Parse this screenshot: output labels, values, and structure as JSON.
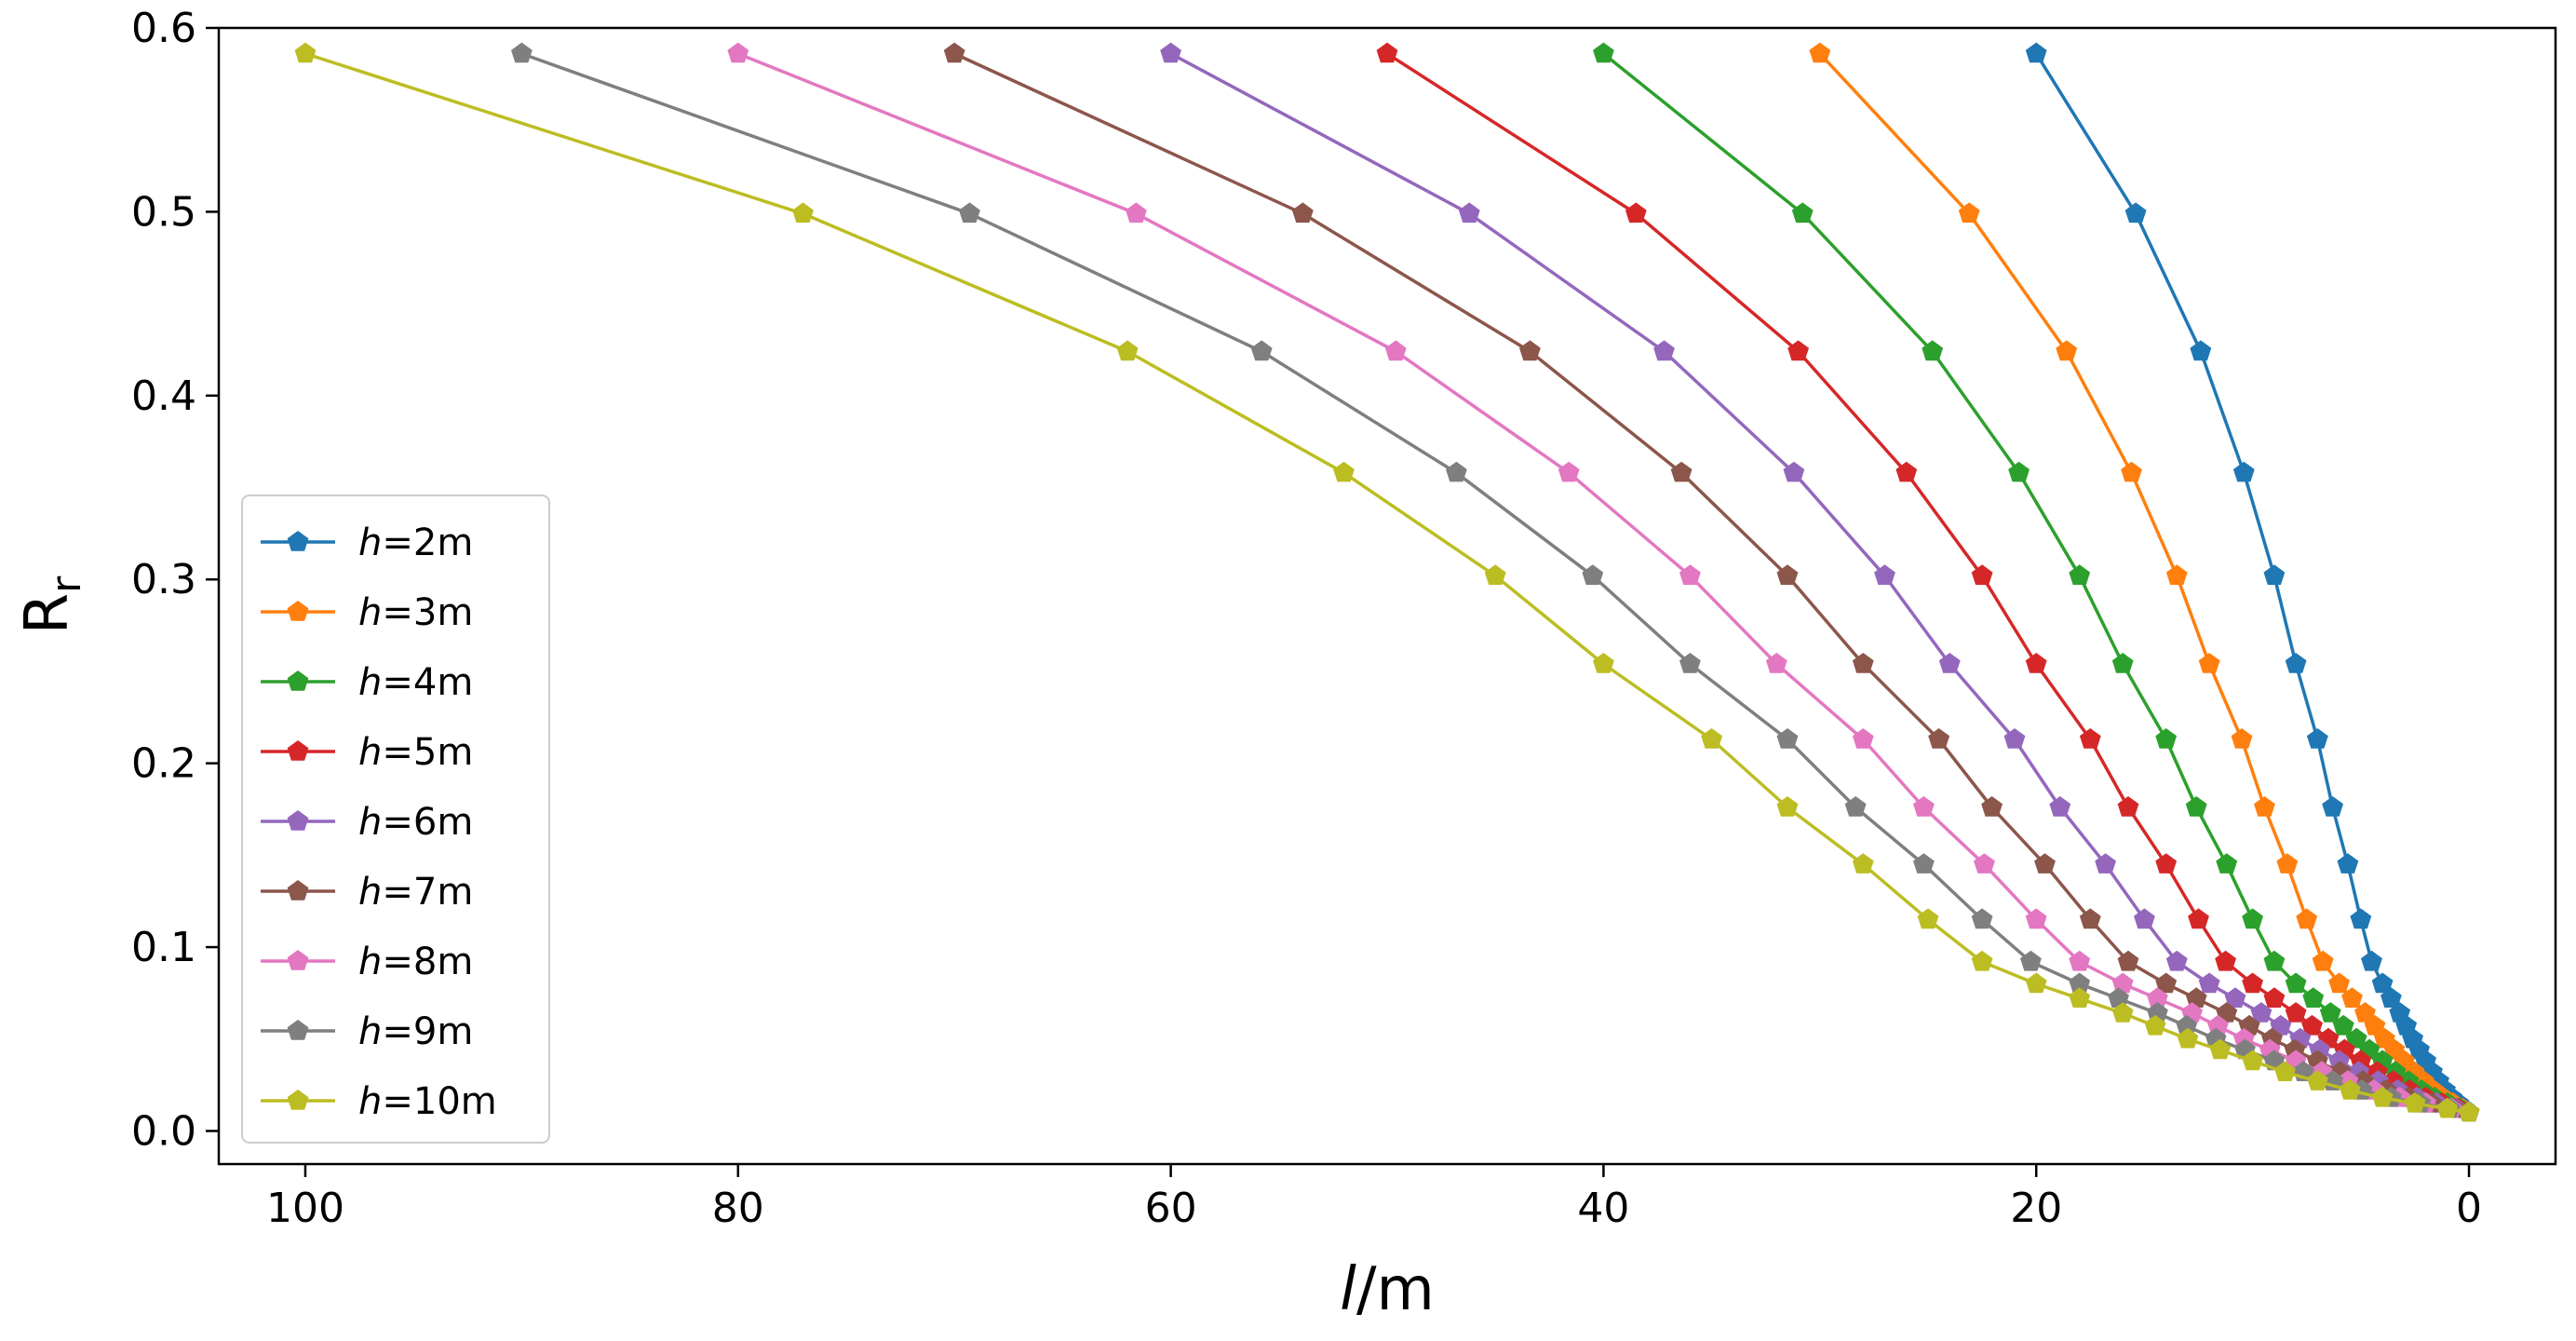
{
  "chart_data": {
    "type": "line",
    "title": "",
    "xlabel": "l/m",
    "xlabel_italic_part": "l",
    "xlabel_unit": "/m",
    "ylabel": "Rr",
    "ylabel_main": "R",
    "ylabel_sub": "r",
    "xlim": [
      104.0,
      -4.0
    ],
    "ylim": [
      -0.018,
      0.6
    ],
    "xticks": [
      100,
      80,
      60,
      40,
      20,
      0
    ],
    "yticks": [
      0.0,
      0.1,
      0.2,
      0.3,
      0.4,
      0.5,
      0.6
    ],
    "xtick_labels": [
      "100",
      "80",
      "60",
      "40",
      "20",
      "0"
    ],
    "ytick_labels": [
      "0.0",
      "0.1",
      "0.2",
      "0.3",
      "0.4",
      "0.5",
      "0.6"
    ],
    "grid": false,
    "legend_position": "lower-left",
    "marker": "pentagon",
    "normalized_curve": {
      "l_over_h": [
        10.0,
        7.7,
        6.2,
        5.2,
        4.5,
        4.0,
        3.5,
        3.15,
        2.8,
        2.5,
        2.25,
        2.0,
        1.8,
        1.6,
        1.45,
        1.3,
        1.15,
        1.0,
        0.85,
        0.7,
        0.55,
        0.4,
        0.25,
        0.1,
        0.0
      ],
      "Rr": [
        0.586,
        0.499,
        0.424,
        0.358,
        0.302,
        0.254,
        0.213,
        0.176,
        0.145,
        0.115,
        0.092,
        0.08,
        0.072,
        0.064,
        0.057,
        0.05,
        0.044,
        0.038,
        0.032,
        0.027,
        0.022,
        0.018,
        0.015,
        0.012,
        0.01
      ],
      "description": "All series share this profile with l = h * l_over_h"
    },
    "series": [
      {
        "name": "h=2m",
        "h": 2,
        "color": "#1f77b4"
      },
      {
        "name": "h=3m",
        "h": 3,
        "color": "#ff7f0e"
      },
      {
        "name": "h=4m",
        "h": 4,
        "color": "#2ca02c"
      },
      {
        "name": "h=5m",
        "h": 5,
        "color": "#d62728"
      },
      {
        "name": "h=6m",
        "h": 6,
        "color": "#9467bd"
      },
      {
        "name": "h=7m",
        "h": 7,
        "color": "#8c564b"
      },
      {
        "name": "h=8m",
        "h": 8,
        "color": "#e377c2"
      },
      {
        "name": "h=9m",
        "h": 9,
        "color": "#7f7f7f"
      },
      {
        "name": "h=10m",
        "h": 10,
        "color": "#bcbd22"
      }
    ],
    "legend_labels": [
      {
        "var": "h",
        "rest": "=2m"
      },
      {
        "var": "h",
        "rest": "=3m"
      },
      {
        "var": "h",
        "rest": "=4m"
      },
      {
        "var": "h",
        "rest": "=5m"
      },
      {
        "var": "h",
        "rest": "=6m"
      },
      {
        "var": "h",
        "rest": "=7m"
      },
      {
        "var": "h",
        "rest": "=8m"
      },
      {
        "var": "h",
        "rest": "=9m"
      },
      {
        "var": "h",
        "rest": "=10m"
      }
    ]
  }
}
